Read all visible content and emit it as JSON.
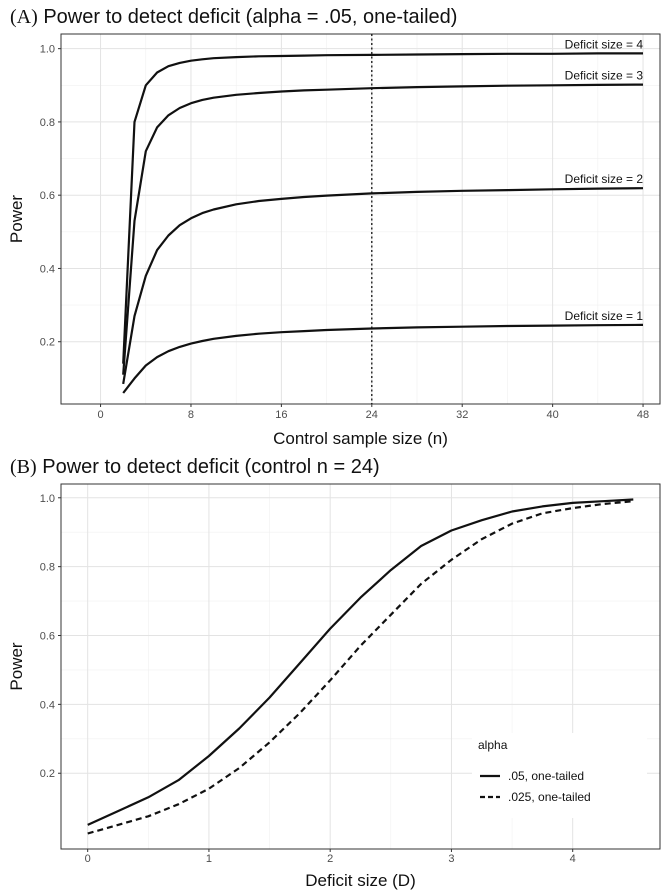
{
  "chart_data": [
    {
      "id": "A",
      "type": "line",
      "title_letter": "(A)",
      "title": "Power to detect deficit (alpha = .05, one-tailed)",
      "xlabel": "Control sample size (n)",
      "ylabel": "Power",
      "xlim": [
        -3.5,
        49.5
      ],
      "ylim": [
        0.03,
        1.04
      ],
      "xticks": [
        0,
        8,
        16,
        24,
        32,
        40,
        48
      ],
      "xtick_labels": [
        "0",
        "8",
        "16",
        "24",
        "32",
        "40",
        "48"
      ],
      "yticks": [
        0.2,
        0.4,
        0.6,
        0.8,
        1.0
      ],
      "ytick_labels": [
        "0.2",
        "0.4",
        "0.6",
        "0.8",
        "1.0"
      ],
      "grid": true,
      "vline": 24,
      "x": [
        2,
        3,
        4,
        5,
        6,
        7,
        8,
        9,
        10,
        12,
        14,
        16,
        18,
        20,
        24,
        28,
        32,
        36,
        40,
        44,
        48
      ],
      "series": [
        {
          "name": "Deficit size = 4",
          "values": [
            0.14,
            0.8,
            0.9,
            0.935,
            0.952,
            0.961,
            0.967,
            0.971,
            0.974,
            0.977,
            0.979,
            0.98,
            0.981,
            0.982,
            0.983,
            0.984,
            0.985,
            0.986,
            0.986,
            0.987,
            0.987
          ]
        },
        {
          "name": "Deficit size = 3",
          "values": [
            0.11,
            0.53,
            0.72,
            0.785,
            0.818,
            0.838,
            0.851,
            0.86,
            0.866,
            0.874,
            0.879,
            0.883,
            0.886,
            0.888,
            0.892,
            0.895,
            0.897,
            0.899,
            0.9,
            0.901,
            0.902
          ]
        },
        {
          "name": "Deficit size = 2",
          "values": [
            0.085,
            0.27,
            0.38,
            0.45,
            0.49,
            0.518,
            0.537,
            0.551,
            0.561,
            0.575,
            0.584,
            0.59,
            0.595,
            0.599,
            0.605,
            0.609,
            0.612,
            0.614,
            0.616,
            0.618,
            0.619
          ]
        },
        {
          "name": "Deficit size = 1",
          "values": [
            0.06,
            0.1,
            0.135,
            0.158,
            0.174,
            0.186,
            0.195,
            0.202,
            0.208,
            0.216,
            0.222,
            0.226,
            0.229,
            0.232,
            0.236,
            0.239,
            0.241,
            0.243,
            0.244,
            0.245,
            0.246
          ]
        }
      ]
    },
    {
      "id": "B",
      "type": "line",
      "title_letter": "(B)",
      "title": "Power to detect deficit (control n = 24)",
      "xlabel": "Deficit size (D)",
      "ylabel": "Power",
      "xlim": [
        -0.22,
        4.72
      ],
      "ylim": [
        -0.02,
        1.04
      ],
      "xticks": [
        0,
        1,
        2,
        3,
        4
      ],
      "xtick_labels": [
        "0",
        "1",
        "2",
        "3",
        "4"
      ],
      "yticks": [
        0.2,
        0.4,
        0.6,
        0.8,
        1.0
      ],
      "ytick_labels": [
        "0.2",
        "0.4",
        "0.6",
        "0.8",
        "1.0"
      ],
      "grid": true,
      "legend_title": "alpha",
      "legend_position": "bottom-right",
      "x": [
        0,
        0.25,
        0.5,
        0.75,
        1.0,
        1.25,
        1.5,
        1.75,
        2.0,
        2.25,
        2.5,
        2.75,
        3.0,
        3.25,
        3.5,
        3.75,
        4.0,
        4.25,
        4.5
      ],
      "series": [
        {
          "name": ".05, one-tailed",
          "dash": "solid",
          "values": [
            0.05,
            0.09,
            0.13,
            0.18,
            0.25,
            0.33,
            0.42,
            0.52,
            0.62,
            0.71,
            0.79,
            0.86,
            0.905,
            0.935,
            0.96,
            0.975,
            0.985,
            0.99,
            0.995
          ]
        },
        {
          "name": ".025, one-tailed",
          "dash": "dashed",
          "values": [
            0.025,
            0.05,
            0.075,
            0.11,
            0.155,
            0.215,
            0.29,
            0.375,
            0.47,
            0.57,
            0.66,
            0.75,
            0.82,
            0.88,
            0.925,
            0.955,
            0.97,
            0.982,
            0.99
          ]
        }
      ]
    }
  ]
}
